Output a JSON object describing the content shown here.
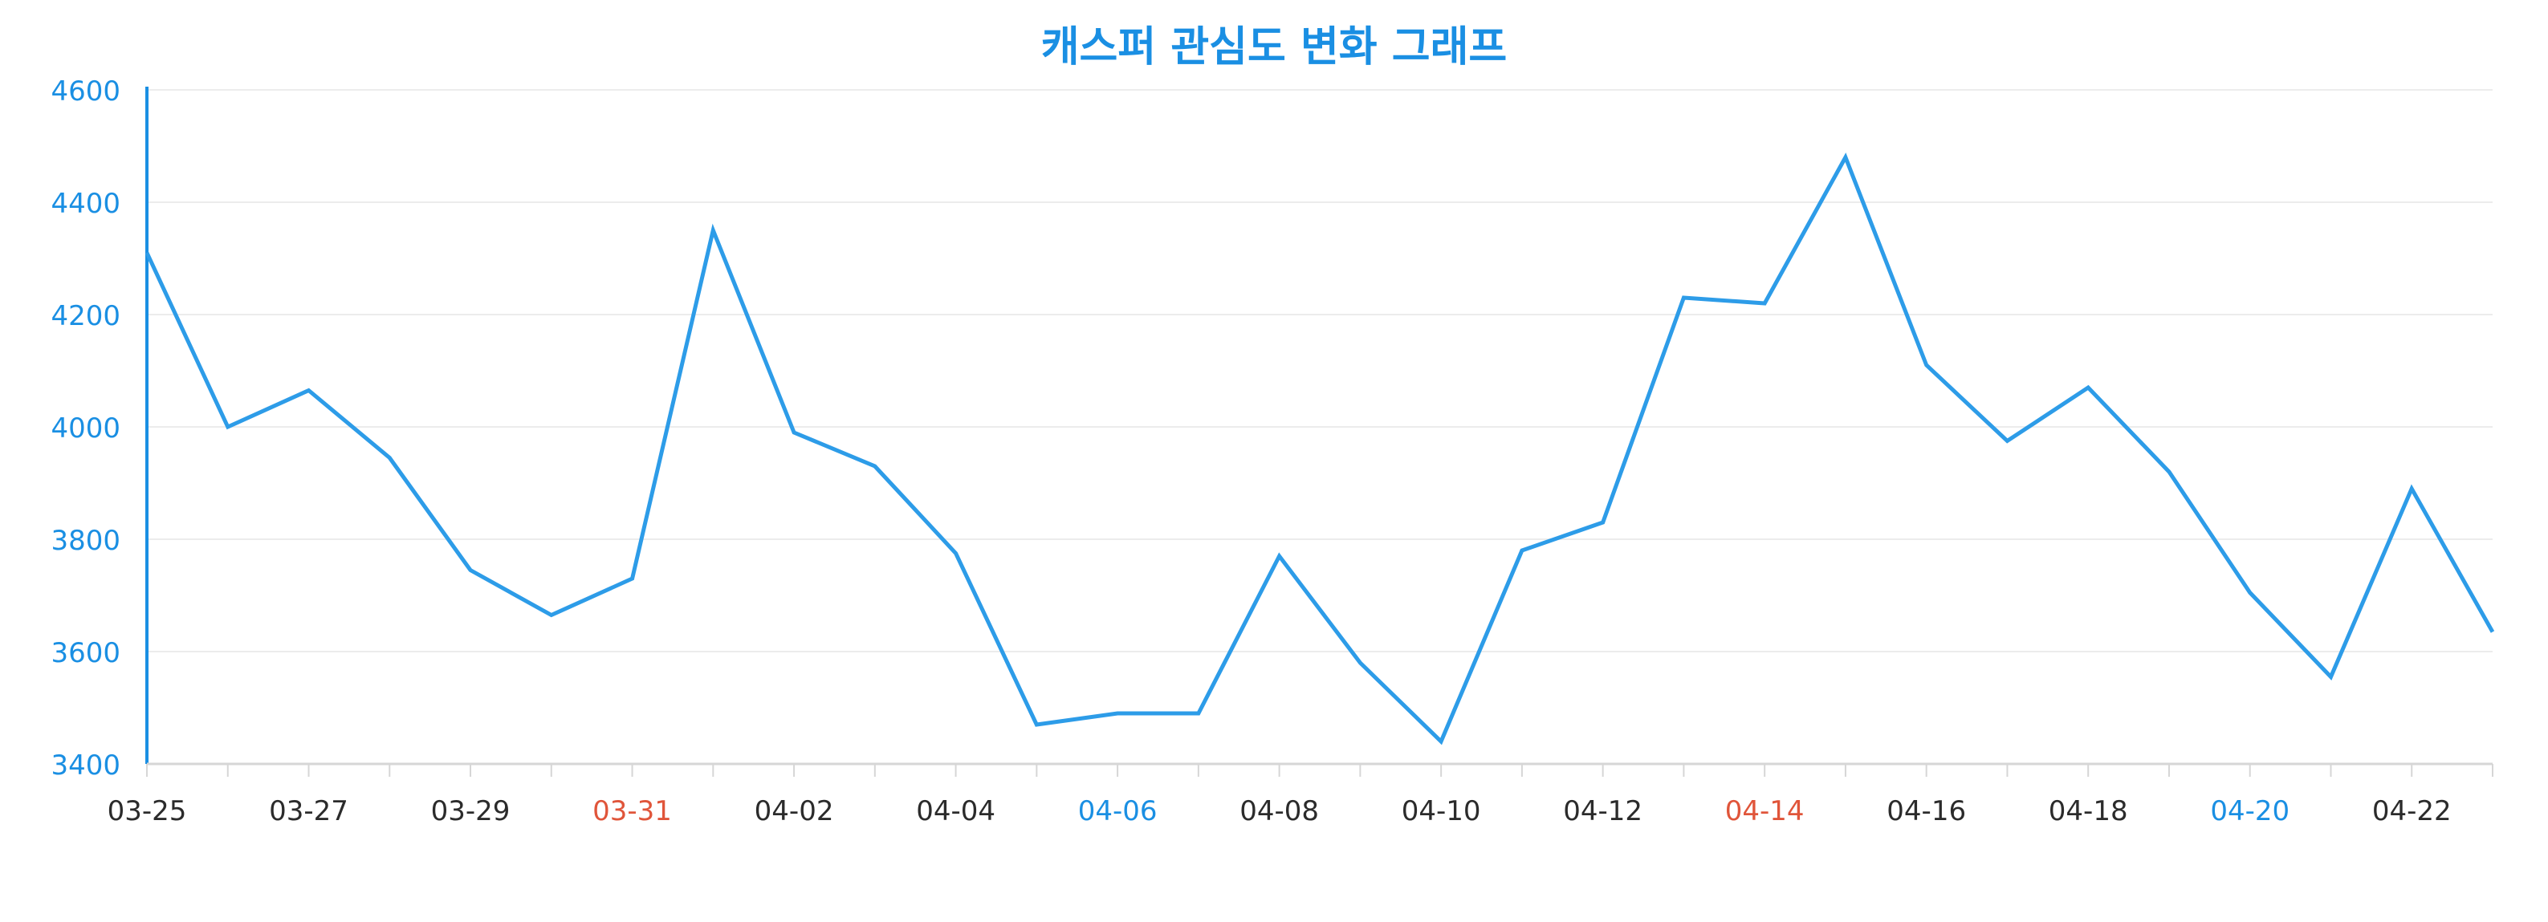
{
  "colors": {
    "title": "#1a8fe3",
    "series": "#2d9ce8",
    "y_axis": "#1a8fe3",
    "y_tick_label": "#1a8fe3",
    "x_axis": "#d6d6d6",
    "grid": "#ececec",
    "x_tick_label_default": "#2b2b2b",
    "x_tick_label_saturday": "#1a8fe3",
    "x_tick_label_sunday": "#e0553a"
  },
  "chart_data": {
    "type": "line",
    "title": "캐스퍼 관심도 변화 그래프",
    "xlabel": "",
    "ylabel": "",
    "ylim": [
      3400,
      4600
    ],
    "yticks": [
      3400,
      3600,
      3800,
      4000,
      4200,
      4400,
      4600
    ],
    "grid": true,
    "x": [
      "03-25",
      "03-26",
      "03-27",
      "03-28",
      "03-29",
      "03-30",
      "03-31",
      "04-01",
      "04-02",
      "04-03",
      "04-04",
      "04-05",
      "04-06",
      "04-07",
      "04-08",
      "04-09",
      "04-10",
      "04-11",
      "04-12",
      "04-13",
      "04-14",
      "04-15",
      "04-16",
      "04-17",
      "04-18",
      "04-19",
      "04-20",
      "04-21",
      "04-22",
      "04-23"
    ],
    "x_tick_labels": [
      {
        "label": "03-25",
        "style": "default"
      },
      {
        "label": "03-27",
        "style": "default"
      },
      {
        "label": "03-29",
        "style": "default"
      },
      {
        "label": "03-31",
        "style": "sunday"
      },
      {
        "label": "04-02",
        "style": "default"
      },
      {
        "label": "04-04",
        "style": "default"
      },
      {
        "label": "04-06",
        "style": "saturday"
      },
      {
        "label": "04-08",
        "style": "default"
      },
      {
        "label": "04-10",
        "style": "default"
      },
      {
        "label": "04-12",
        "style": "default"
      },
      {
        "label": "04-14",
        "style": "sunday"
      },
      {
        "label": "04-16",
        "style": "default"
      },
      {
        "label": "04-18",
        "style": "default"
      },
      {
        "label": "04-20",
        "style": "saturday"
      },
      {
        "label": "04-22",
        "style": "default"
      }
    ],
    "series": [
      {
        "values": [
          4310,
          4000,
          4065,
          3945,
          3745,
          3665,
          3730,
          4350,
          3990,
          3930,
          3775,
          3470,
          3490,
          3490,
          3770,
          3580,
          3440,
          3780,
          3830,
          4230,
          4220,
          4480,
          4110,
          3975,
          4070,
          3920,
          3705,
          3555,
          3890,
          3635
        ]
      }
    ]
  }
}
